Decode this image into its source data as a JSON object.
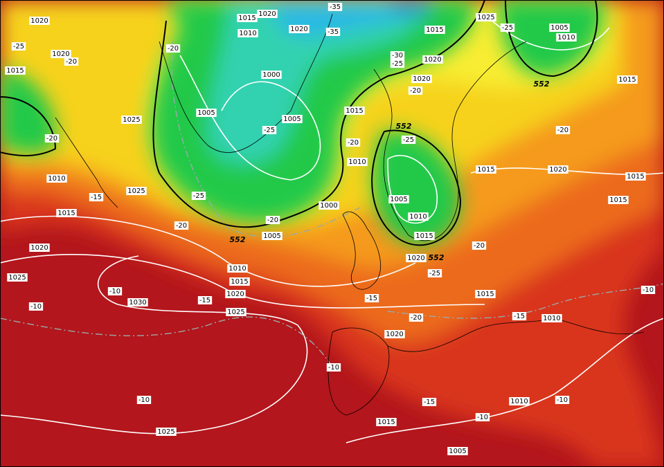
{
  "isobar_labels": [
    1020,
    1015,
    1020,
    1010,
    1020,
    1015,
    1025,
    1005,
    1010,
    1015,
    1020,
    1015,
    1000,
    1005,
    1005,
    1025,
    1020,
    1020,
    1015,
    1010,
    1015,
    1020,
    1015,
    1015,
    1010,
    1025,
    1015,
    1000,
    1005,
    1010,
    1015,
    1005,
    1020,
    1020,
    1010,
    1015,
    1025,
    1020,
    1030,
    1025,
    1015,
    1010,
    1020,
    1010,
    1015,
    1025,
    1005
  ],
  "temperature_labels": [
    -25,
    -20,
    -20,
    -35,
    -35,
    -30,
    -25,
    -25,
    -20,
    -25,
    -20,
    -20,
    -25,
    -20,
    -15,
    -25,
    -20,
    -20,
    -20,
    -25,
    -15,
    -10,
    -15,
    -10,
    -10,
    -15,
    -20,
    -10,
    -10,
    -15,
    -10,
    -10
  ],
  "thickness_labels": [
    552,
    552,
    552,
    552
  ]
}
